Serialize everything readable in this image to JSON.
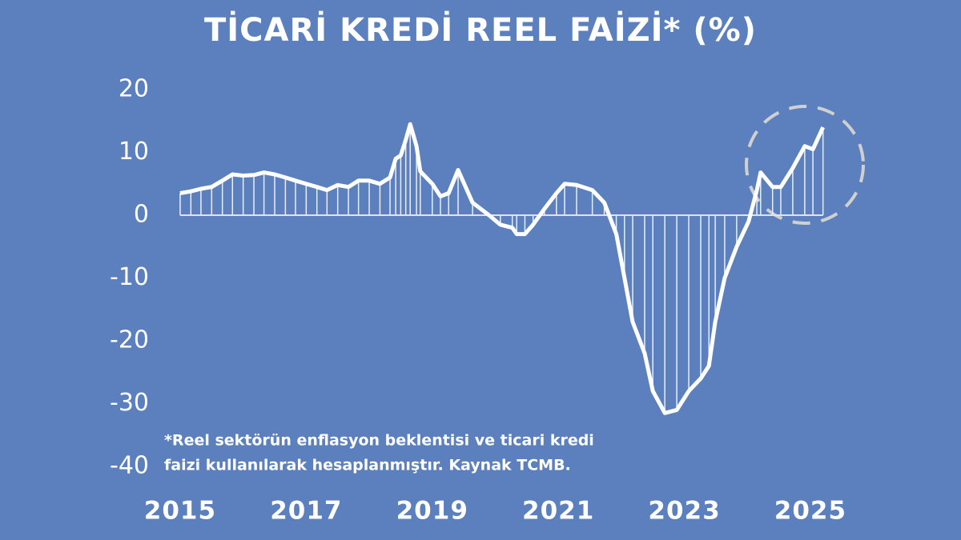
{
  "chart_data": {
    "type": "line",
    "title": "TİCARİ KREDİ REEL FAİZİ* (%)",
    "annotation_lines": [
      "*Reel sektörün enflasyon beklentisi ve ticari kredi",
      "faizi kullanılarak hesaplanmıştır. Kaynak TCMB."
    ],
    "color": "#ffffff",
    "x": [
      2015.0,
      2015.17,
      2015.33,
      2015.5,
      2015.67,
      2015.83,
      2016.0,
      2016.17,
      2016.33,
      2016.5,
      2016.67,
      2016.83,
      2017.0,
      2017.17,
      2017.33,
      2017.5,
      2017.67,
      2017.83,
      2018.0,
      2018.17,
      2018.33,
      2018.42,
      2018.5,
      2018.58,
      2018.65,
      2018.75,
      2018.81,
      2019.0,
      2019.13,
      2019.26,
      2019.41,
      2019.64,
      2019.9,
      2020.08,
      2020.27,
      2020.34,
      2020.47,
      2020.6,
      2020.78,
      2020.97,
      2021.1,
      2021.29,
      2021.54,
      2021.73,
      2021.92,
      2022.05,
      2022.18,
      2022.37,
      2022.5,
      2022.69,
      2022.88,
      2023.07,
      2023.26,
      2023.39,
      2023.49,
      2023.64,
      2023.83,
      2024.02,
      2024.15,
      2024.21,
      2024.4,
      2024.53,
      2024.72,
      2024.91,
      2025.04,
      2025.2
    ],
    "values": [
      3.5,
      3.8,
      4.2,
      4.5,
      5.5,
      6.5,
      6.3,
      6.4,
      6.8,
      6.5,
      6.0,
      5.5,
      5.0,
      4.5,
      4.0,
      4.8,
      4.5,
      5.5,
      5.5,
      5.0,
      6.0,
      9.0,
      9.5,
      12.0,
      14.5,
      11.0,
      7.0,
      5.0,
      3.0,
      3.5,
      7.2,
      2.0,
      0.0,
      -1.5,
      -2.0,
      -3.0,
      -3.0,
      -1.5,
      1.0,
      3.5,
      5.0,
      4.8,
      4.0,
      2.0,
      -3.0,
      -10.0,
      -17.0,
      -22.0,
      -28.0,
      -31.5,
      -31.0,
      -28.0,
      -26.0,
      -24.0,
      -17.0,
      -10.0,
      -5.0,
      -1.0,
      4.0,
      6.8,
      4.5,
      4.5,
      7.5,
      11.0,
      10.5,
      14.0
    ],
    "xlim": [
      2014.5,
      2025.5
    ],
    "xticks": [
      2015,
      2017,
      2019,
      2021,
      2023,
      2025
    ],
    "ylim": [
      -40,
      20
    ],
    "yticks": [
      -40,
      -30,
      -20,
      -10,
      0,
      10,
      20
    ]
  }
}
